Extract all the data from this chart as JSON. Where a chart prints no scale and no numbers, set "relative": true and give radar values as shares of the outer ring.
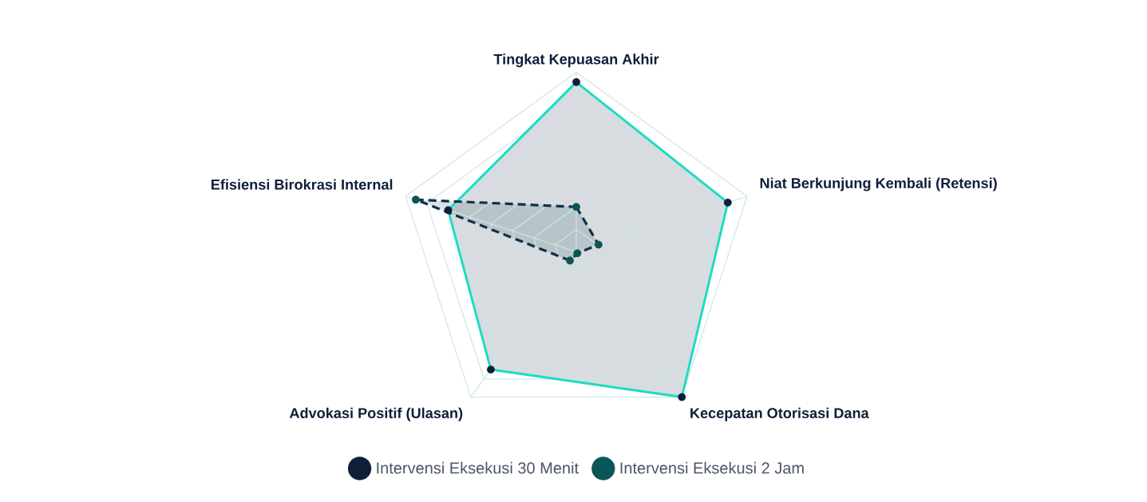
{
  "chart_data": {
    "type": "radar",
    "relative": true,
    "grid": true,
    "legend": "bottom",
    "marker": "circle",
    "categories": [
      "Tingkat Kepuasan Akhir",
      "Niat Berkunjung Kembali (Retensi)",
      "Kecepatan Otorisasi Dana",
      "Advokasi Positif (Ulasan)",
      "Efisiensi Birokrasi Internal"
    ],
    "series": [
      {
        "name": "Intervensi Eksekusi 30 Menit",
        "color": "#0f1f3a",
        "line_style": "solid",
        "values": [
          0.945,
          0.887,
          1.0,
          0.81,
          0.75
        ]
      },
      {
        "name": "Intervensi Eksekusi 2 Jam",
        "color": "#0a5656",
        "line_style": "dashed",
        "values": [
          0.25,
          0.13,
          0.01,
          0.06,
          0.94
        ]
      }
    ]
  }
}
